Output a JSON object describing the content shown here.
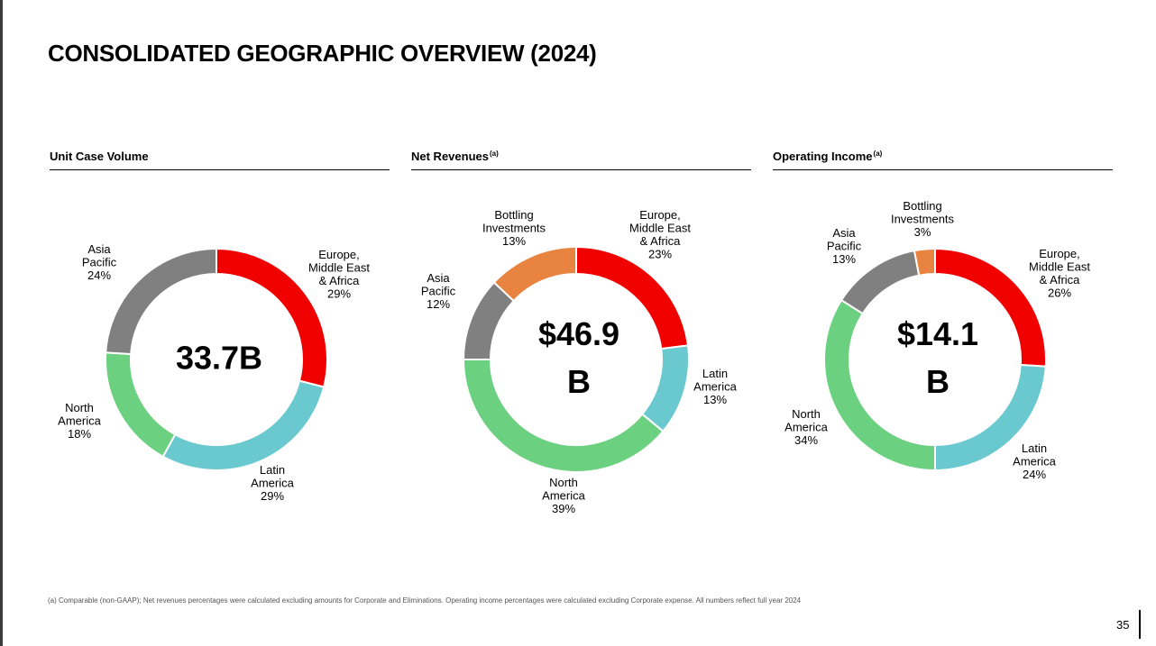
{
  "title": "CONSOLIDATED GEOGRAPHIC OVERVIEW (2024)",
  "colors": {
    "europe": "#f10000",
    "latin_america": "#6ac8cf",
    "north_america": "#6bd07f",
    "asia_pacific": "#808080",
    "bottling": "#e8843f"
  },
  "panels": [
    {
      "heading": "Unit Case Volume",
      "footnote_mark": ""
    },
    {
      "heading": "Net Revenues",
      "footnote_mark": "(a)"
    },
    {
      "heading": "Operating Income",
      "footnote_mark": "(a)"
    }
  ],
  "chart_data": [
    {
      "type": "pie",
      "title": "Unit Case Volume",
      "center_label": [
        "33.7B"
      ],
      "slices": [
        {
          "label": [
            "Europe,",
            "Middle East",
            "& Africa"
          ],
          "value": 29,
          "pct": "29%",
          "color": "#f10000"
        },
        {
          "label": [
            "Latin",
            "America"
          ],
          "value": 29,
          "pct": "29%",
          "color": "#6ac8cf"
        },
        {
          "label": [
            "North",
            "America"
          ],
          "value": 18,
          "pct": "18%",
          "color": "#6bd07f"
        },
        {
          "label": [
            "Asia",
            "Pacific"
          ],
          "value": 24,
          "pct": "24%",
          "color": "#808080"
        }
      ]
    },
    {
      "type": "pie",
      "title": "Net Revenues",
      "center_label": [
        "$46.9",
        "B"
      ],
      "slices": [
        {
          "label": [
            "Europe,",
            "Middle East",
            "& Africa"
          ],
          "value": 23,
          "pct": "23%",
          "color": "#f10000"
        },
        {
          "label": [
            "Latin",
            "America"
          ],
          "value": 13,
          "pct": "13%",
          "color": "#6ac8cf"
        },
        {
          "label": [
            "North",
            "America"
          ],
          "value": 39,
          "pct": "39%",
          "color": "#6bd07f"
        },
        {
          "label": [
            "Asia",
            "Pacific"
          ],
          "value": 12,
          "pct": "12%",
          "color": "#808080"
        },
        {
          "label": [
            "Bottling",
            "Investments"
          ],
          "value": 13,
          "pct": "13%",
          "color": "#e8843f"
        }
      ]
    },
    {
      "type": "pie",
      "title": "Operating Income",
      "center_label": [
        "$14.1",
        "B"
      ],
      "slices": [
        {
          "label": [
            "Europe,",
            "Middle East",
            "& Africa"
          ],
          "value": 26,
          "pct": "26%",
          "color": "#f10000"
        },
        {
          "label": [
            "Latin",
            "America"
          ],
          "value": 24,
          "pct": "24%",
          "color": "#6ac8cf"
        },
        {
          "label": [
            "North",
            "America"
          ],
          "value": 34,
          "pct": "34%",
          "color": "#6bd07f"
        },
        {
          "label": [
            "Asia",
            "Pacific"
          ],
          "value": 13,
          "pct": "13%",
          "color": "#808080"
        },
        {
          "label": [
            "Bottling",
            "Investments"
          ],
          "value": 3,
          "pct": "3%",
          "color": "#e8843f"
        }
      ]
    }
  ],
  "footnote": "(a) Comparable (non-GAAP); Net revenues percentages were calculated excluding amounts for Corporate and Eliminations. Operating income percentages were calculated excluding Corporate expense. All numbers reflect full year 2024",
  "page_number": "35"
}
